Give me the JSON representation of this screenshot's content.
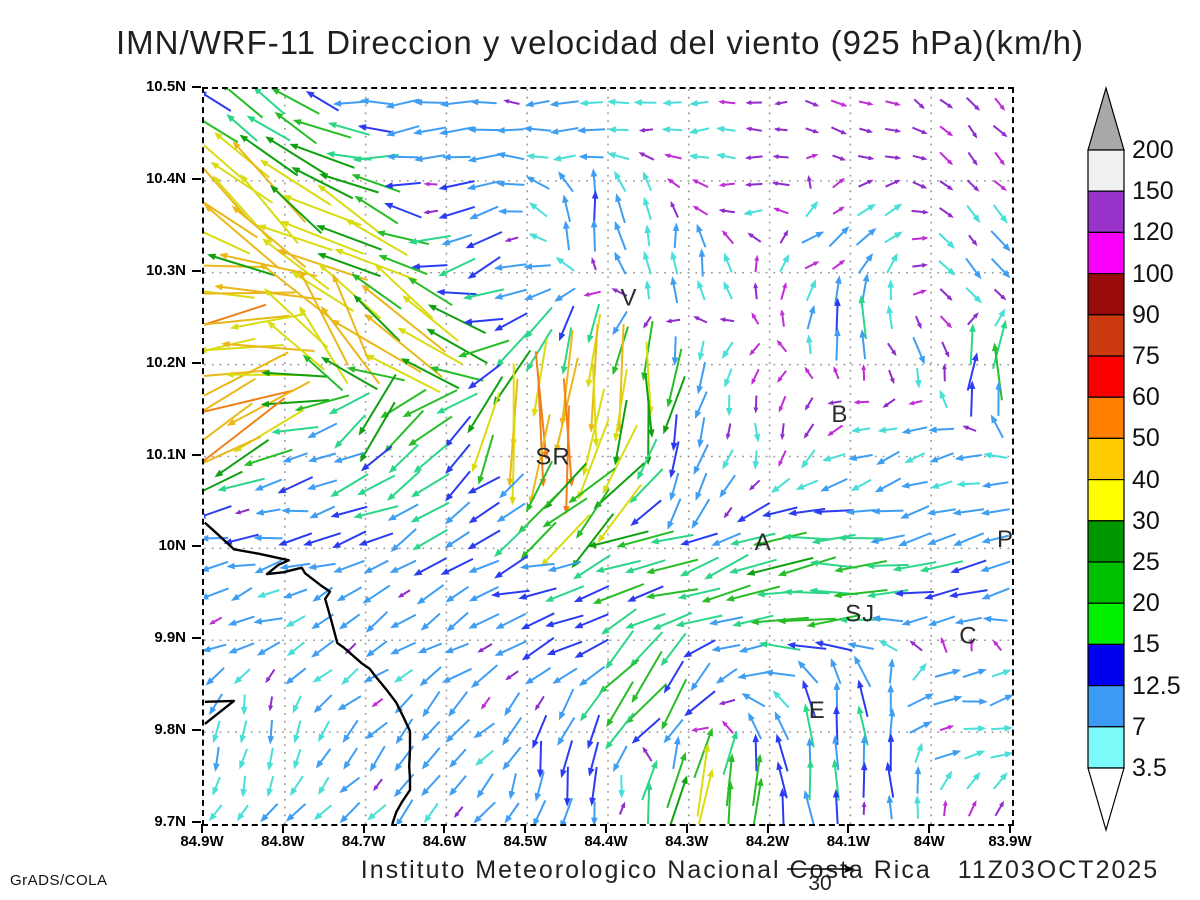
{
  "header": {
    "title": "IMN/WRF-11 Direccion y velocidad del viento (925 hPa)(km/h)"
  },
  "footer": {
    "institute": "Instituto Meteorologico Nacional Costa Rica",
    "datetime": "11Z03OCT2025",
    "credit": "GrADS/COLA",
    "reference_value": "30"
  },
  "axes": {
    "lat_ticks": [
      "10.5N",
      "10.4N",
      "10.3N",
      "10.2N",
      "10.1N",
      "10N",
      "9.9N",
      "9.8N",
      "9.7N"
    ],
    "lon_ticks": [
      "84.9W",
      "84.8W",
      "84.7W",
      "84.6W",
      "84.5W",
      "84.4W",
      "84.3W",
      "84.2W",
      "84.1W",
      "84W",
      "83.9W"
    ],
    "lat_range": [
      9.7,
      10.5
    ],
    "lon_range": [
      -84.9,
      -83.9
    ],
    "grid_style": "dotted",
    "grid_color": "#999999"
  },
  "colorbar": {
    "labels_top_to_bottom": [
      "200",
      "150",
      "120",
      "100",
      "90",
      "75",
      "60",
      "50",
      "40",
      "30",
      "25",
      "20",
      "15",
      "12.5",
      "7",
      "3.5"
    ],
    "box_colors_top_to_bottom": [
      "#f0f0f0",
      "#9933cc",
      "#fa00fa",
      "#990b0b",
      "#cc3a10",
      "#fa0000",
      "#ff8000",
      "#ffcc00",
      "#ffff00",
      "#009600",
      "#00c000",
      "#00f000",
      "#0000f0",
      "#3c9cf5",
      "#7dfafa"
    ],
    "above_color": "#a8a8a8",
    "below_color": "#ffffff"
  },
  "chart_data": {
    "type": "vector_field",
    "title": "IMN/WRF-11 Direccion y velocidad del viento (925 hPa)(km/h)",
    "units": "km/h",
    "pressure_level": "925 hPa",
    "model": "IMN/WRF-11",
    "valid_time": "11Z03OCT2025",
    "reference_vector_kmh": 30,
    "lon_range": [
      -84.9,
      -83.9
    ],
    "lat_range": [
      9.7,
      10.5
    ],
    "grid_cols": 30,
    "grid_rows": 27,
    "seed": 77,
    "speed_levels": [
      3.5,
      7,
      12.5,
      15,
      20,
      25,
      30,
      40,
      50,
      60,
      75,
      90,
      100,
      120,
      150,
      200
    ],
    "arrow_palette": [
      {
        "min": 0,
        "color": "#8f2ccc"
      },
      {
        "min": 4.5,
        "color": "#49ded8"
      },
      {
        "min": 7,
        "color": "#3f9ef2"
      },
      {
        "min": 12.5,
        "color": "#2b3cf0"
      },
      {
        "min": 15,
        "color": "#2bd689"
      },
      {
        "min": 20,
        "color": "#27bd27"
      },
      {
        "min": 25,
        "color": "#0fa00f"
      },
      {
        "min": 30,
        "color": "#d8dc10"
      },
      {
        "min": 40,
        "color": "#eab819"
      },
      {
        "min": 50,
        "color": "#f08018"
      },
      {
        "min": 60,
        "color": "#f02810"
      },
      {
        "min": 75,
        "color": "#cc3a10"
      }
    ],
    "calm_alt_color": "#c02cd6",
    "flow_samples": [
      [
        -84.85,
        10.468,
        150,
        18
      ],
      [
        -84.65,
        10.468,
        185,
        12
      ],
      [
        -84.45,
        10.452,
        185,
        8
      ],
      [
        -84.28,
        10.46,
        185,
        5
      ],
      [
        -84.1,
        10.468,
        -20,
        3
      ],
      [
        -83.93,
        10.452,
        -45,
        4
      ],
      [
        -84.84,
        10.388,
        140,
        40
      ],
      [
        -84.77,
        10.308,
        150,
        45
      ],
      [
        -84.84,
        10.26,
        190,
        46
      ],
      [
        -84.74,
        10.236,
        120,
        40
      ],
      [
        -84.85,
        10.14,
        205,
        48
      ],
      [
        -84.68,
        10.148,
        230,
        25
      ],
      [
        -84.57,
        10.34,
        210,
        12
      ],
      [
        -84.42,
        10.364,
        90,
        10
      ],
      [
        -84.32,
        10.308,
        95,
        9
      ],
      [
        -84.22,
        10.38,
        180,
        4
      ],
      [
        -84.12,
        10.324,
        35,
        10
      ],
      [
        -83.93,
        10.3,
        -55,
        9
      ],
      [
        -84.02,
        10.22,
        -80,
        10
      ],
      [
        -84.08,
        10.244,
        90,
        14
      ],
      [
        -84.65,
        10.22,
        145,
        42
      ],
      [
        -84.48,
        10.124,
        265,
        50
      ],
      [
        -84.4,
        10.164,
        270,
        42
      ],
      [
        -84.43,
        10.044,
        225,
        30
      ],
      [
        -84.55,
        10.052,
        215,
        12
      ],
      [
        -84.82,
        10.036,
        185,
        10
      ],
      [
        -84.84,
        9.924,
        200,
        8
      ],
      [
        -84.83,
        9.804,
        265,
        6
      ],
      [
        -84.7,
        9.86,
        220,
        7
      ],
      [
        -84.6,
        9.94,
        210,
        10
      ],
      [
        -84.48,
        9.956,
        190,
        12
      ],
      [
        -84.34,
        9.996,
        190,
        22
      ],
      [
        -84.15,
        9.972,
        185,
        24
      ],
      [
        -84.0,
        9.988,
        195,
        14
      ],
      [
        -84.22,
        10.124,
        -90,
        4
      ],
      [
        -84.3,
        10.06,
        250,
        10
      ],
      [
        -84.35,
        9.836,
        235,
        20
      ],
      [
        -84.3,
        9.732,
        75,
        30
      ],
      [
        -84.09,
        9.804,
        100,
        16
      ],
      [
        -83.98,
        9.82,
        10,
        9
      ],
      [
        -83.93,
        10.196,
        88,
        20
      ],
      [
        -84.0,
        10.1,
        200,
        8
      ],
      [
        -84.77,
        10.1,
        195,
        9
      ],
      [
        -84.43,
        9.756,
        265,
        12
      ],
      [
        -84.62,
        9.78,
        230,
        9
      ]
    ],
    "stations": [
      {
        "label": "V",
        "lon": -84.374,
        "lat": 10.273
      },
      {
        "label": "B",
        "lon": -84.113,
        "lat": 10.146
      },
      {
        "label": "SR",
        "lon": -84.468,
        "lat": 10.1
      },
      {
        "label": "A",
        "lon": -84.208,
        "lat": 10.007
      },
      {
        "label": "SJ",
        "lon": -84.088,
        "lat": 9.929
      },
      {
        "label": "C",
        "lon": -83.954,
        "lat": 9.905
      },
      {
        "label": "E",
        "lon": -84.141,
        "lat": 9.824
      },
      {
        "label": "P",
        "lon": -83.908,
        "lat": 10.01
      }
    ],
    "coastline": [
      [
        [
          -84.899,
          10.028
        ],
        [
          -84.885,
          10.017
        ],
        [
          -84.863,
          9.999
        ],
        [
          -84.831,
          9.994
        ],
        [
          -84.795,
          9.987
        ],
        [
          -84.808,
          9.982
        ],
        [
          -84.822,
          9.972
        ],
        [
          -84.802,
          9.974
        ],
        [
          -84.779,
          9.979
        ],
        [
          -84.775,
          9.973
        ],
        [
          -84.756,
          9.96
        ],
        [
          -84.744,
          9.953
        ],
        [
          -84.75,
          9.945
        ],
        [
          -84.742,
          9.92
        ],
        [
          -84.735,
          9.897
        ],
        [
          -84.727,
          9.892
        ],
        [
          -84.705,
          9.875
        ],
        [
          -84.695,
          9.869
        ],
        [
          -84.688,
          9.861
        ],
        [
          -84.674,
          9.846
        ],
        [
          -84.662,
          9.832
        ],
        [
          -84.653,
          9.816
        ],
        [
          -84.645,
          9.801
        ],
        [
          -84.645,
          9.781
        ],
        [
          -84.646,
          9.763
        ],
        [
          -84.645,
          9.749
        ],
        [
          -84.645,
          9.737
        ],
        [
          -84.655,
          9.724
        ],
        [
          -84.662,
          9.713
        ],
        [
          -84.667,
          9.7
        ]
      ],
      [
        [
          -84.899,
          9.833
        ],
        [
          -84.863,
          9.834
        ],
        [
          -84.899,
          9.809
        ]
      ]
    ]
  }
}
